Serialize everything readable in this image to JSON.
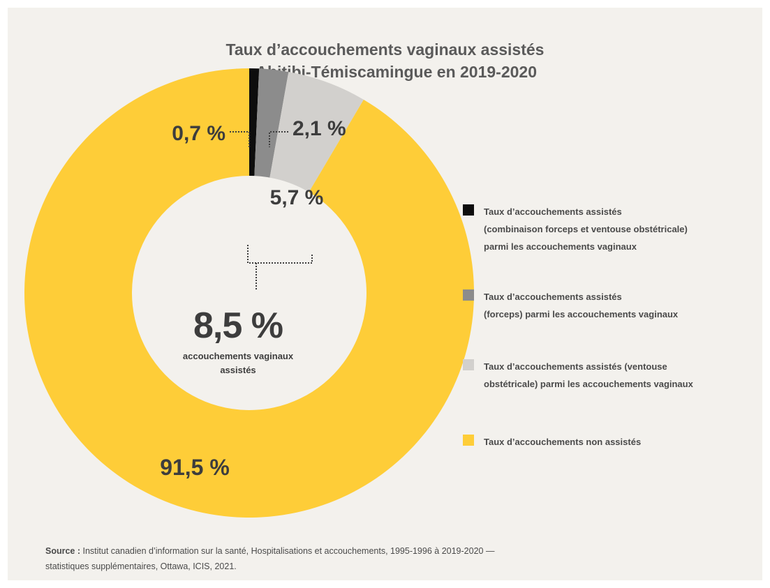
{
  "title_lines": [
    "Taux d’accouchements vaginaux assistés",
    "en Abitibi-Témiscamingue en 2019-2020"
  ],
  "center": {
    "value": "8,5 %",
    "caption": "accouchements vaginaux assistés"
  },
  "chart_data": {
    "type": "pie",
    "title": "Taux d’accouchements vaginaux assistés en Abitibi-Témiscamingue en 2019-2020",
    "donut": true,
    "slices": [
      {
        "label": "Taux d’accouchements assistés (combinaison forceps et ventouse obstétricale) parmi les accouchements vaginaux",
        "value": 0.7,
        "display": "0,7 %",
        "color": "#0d0d0d"
      },
      {
        "label": "Taux d’accouchements assistés (forceps) parmi les accouchements vaginaux",
        "value": 2.1,
        "display": "2,1 %",
        "color": "#8c8c8c"
      },
      {
        "label": "Taux d’accouchements assistés (ventouse obstétricale) parmi les accouchements vaginaux",
        "value": 5.7,
        "display": "5,7 %",
        "color": "#d2d0cd"
      },
      {
        "label": "Taux d’accouchements non assistés",
        "value": 91.5,
        "display": "91,5 %",
        "color": "#fecd38"
      }
    ],
    "legend_position": "right"
  },
  "legend": [
    {
      "lines": [
        "Taux d’accouchements assistés",
        "(combinaison forceps et ventouse obstétricale)",
        "parmi les accouchements vaginaux"
      ],
      "color": "#0d0d0d"
    },
    {
      "lines": [
        "Taux d’accouchements assistés",
        "(forceps) parmi les accouchements vaginaux"
      ],
      "color": "#8c8c8c"
    },
    {
      "lines": [
        "Taux d’accouchements assistés (ventouse",
        "obstétricale) parmi les accouchements vaginaux"
      ],
      "color": "#d2d0cd"
    },
    {
      "lines": [
        "Taux d’accouchements non assistés"
      ],
      "color": "#fecd38"
    }
  ],
  "source": {
    "label": "Source :",
    "text": "Institut canadien d’information sur la santé, Hospitalisations et accouchements, 1995-1996 à 2019-2020 —",
    "text2": "statistiques supplémentaires, Ottawa, ICIS, 2021."
  }
}
